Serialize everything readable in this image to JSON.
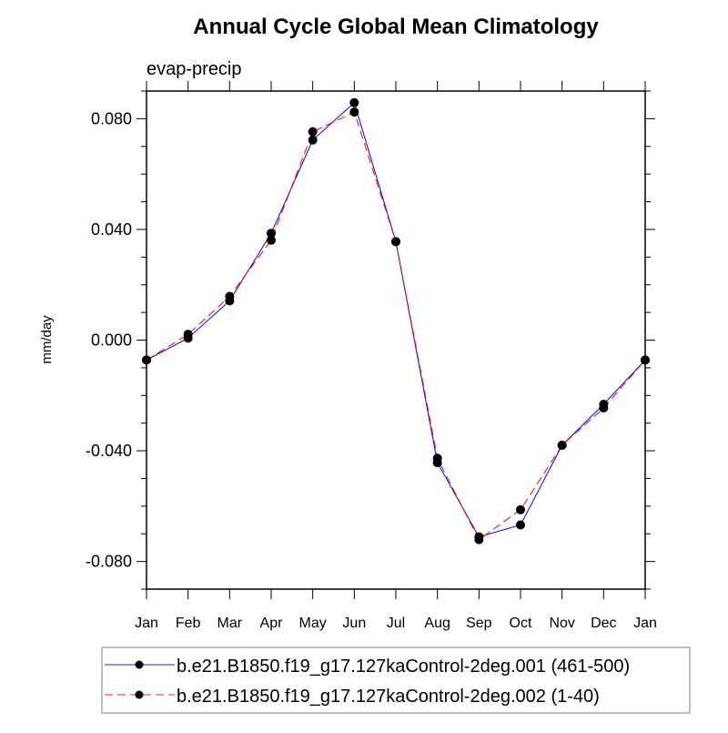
{
  "chart_data": {
    "type": "line",
    "title": "Annual Cycle Global Mean Climatology",
    "subtitle": "evap-precip",
    "xlabel": "",
    "ylabel": "mm/day",
    "categories": [
      "Jan",
      "Feb",
      "Mar",
      "Apr",
      "May",
      "Jun",
      "Jul",
      "Aug",
      "Sep",
      "Oct",
      "Nov",
      "Dec",
      "Jan"
    ],
    "ylim": [
      -0.09,
      0.09
    ],
    "yticks": [
      -0.08,
      -0.04,
      0.0,
      0.04,
      0.08
    ],
    "ytick_labels": [
      "-0.080",
      "-0.040",
      "0.000",
      "0.040",
      "0.080"
    ],
    "grid": false,
    "legend_position": "bottom",
    "series": [
      {
        "name": "b.e21.B1850.f19_g17.127kaControl-2deg.001 (461-500)",
        "color": "#0000ff",
        "style": "solid",
        "values": [
          -0.0072,
          0.0007,
          0.0142,
          0.0386,
          0.0723,
          0.0858,
          0.0356,
          -0.0443,
          -0.0711,
          -0.0668,
          -0.038,
          -0.0232,
          -0.0072
        ]
      },
      {
        "name": "b.e21.B1850.f19_g17.127kaControl-2deg.002 (1-40)",
        "color": "#ff0000",
        "style": "dashed",
        "values": [
          -0.0072,
          0.0021,
          0.0158,
          0.0361,
          0.0753,
          0.0824,
          0.0356,
          -0.0427,
          -0.0721,
          -0.0613,
          -0.038,
          -0.0245,
          -0.0072
        ]
      }
    ]
  }
}
